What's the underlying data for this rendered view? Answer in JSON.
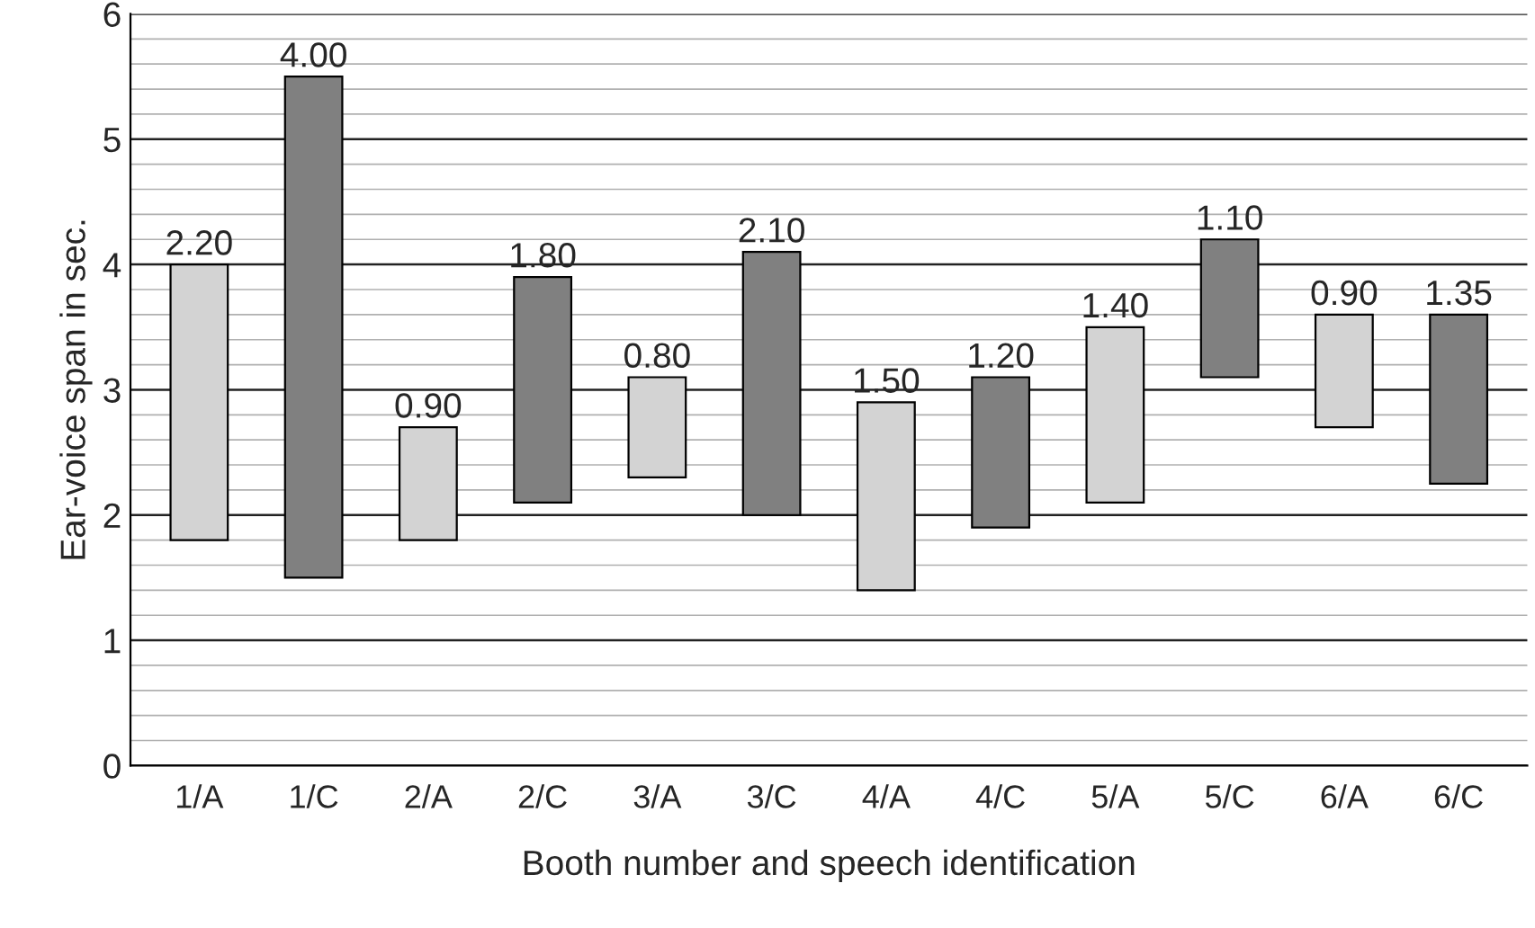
{
  "chart_data": {
    "type": "bar",
    "xlabel": "Booth number and speech identification",
    "ylabel": "Ear-voice span in sec.",
    "categories": [
      "1/A",
      "1/C",
      "2/A",
      "2/C",
      "3/A",
      "3/C",
      "4/A",
      "4/C",
      "5/A",
      "5/C",
      "6/A",
      "6/C"
    ],
    "values": [
      2.2,
      4.0,
      0.9,
      1.8,
      0.8,
      2.1,
      1.5,
      1.2,
      1.4,
      1.1,
      0.9,
      1.35
    ],
    "base": [
      1.8,
      1.5,
      1.8,
      2.1,
      2.3,
      2.0,
      1.4,
      1.9,
      2.1,
      3.1,
      2.7,
      2.25
    ],
    "value_labels": [
      "2.20",
      "4.00",
      "0.90",
      "1.80",
      "0.80",
      "2.10",
      "1.50",
      "1.20",
      "1.40",
      "1.10",
      "0.90",
      "1.35"
    ],
    "colors": [
      "#d3d3d3",
      "#808080",
      "#d3d3d3",
      "#808080",
      "#d3d3d3",
      "#808080",
      "#d3d3d3",
      "#808080",
      "#d3d3d3",
      "#808080",
      "#d3d3d3",
      "#808080"
    ],
    "ylim": [
      0,
      6
    ],
    "yticks": [
      0,
      {
        "value": 0.2,
        "label": null
      },
      {
        "value": 0.4,
        "label": null
      },
      {
        "value": 0.6,
        "label": null
      },
      {
        "value": 0.8,
        "label": null
      },
      1,
      {
        "value": 1.2,
        "label": null
      },
      {
        "value": 1.4,
        "label": null
      },
      {
        "value": 1.6,
        "label": null
      },
      {
        "value": 1.8,
        "label": null
      },
      2,
      {
        "value": 2.2,
        "label": null
      },
      {
        "value": 2.4,
        "label": null
      },
      {
        "value": 2.6,
        "label": null
      },
      {
        "value": 2.8,
        "label": null
      },
      3,
      {
        "value": 3.2,
        "label": null
      },
      {
        "value": 3.4,
        "label": null
      },
      {
        "value": 3.6,
        "label": null
      },
      {
        "value": 3.8,
        "label": null
      },
      4,
      {
        "value": 4.2,
        "label": null
      },
      {
        "value": 4.4,
        "label": null
      },
      {
        "value": 4.6,
        "label": null
      },
      {
        "value": 4.8,
        "label": null
      },
      5,
      {
        "value": 5.2,
        "label": null
      },
      {
        "value": 5.4,
        "label": null
      },
      {
        "value": 5.6,
        "label": null
      },
      {
        "value": 5.8,
        "label": null
      },
      6
    ],
    "grid": "y"
  }
}
